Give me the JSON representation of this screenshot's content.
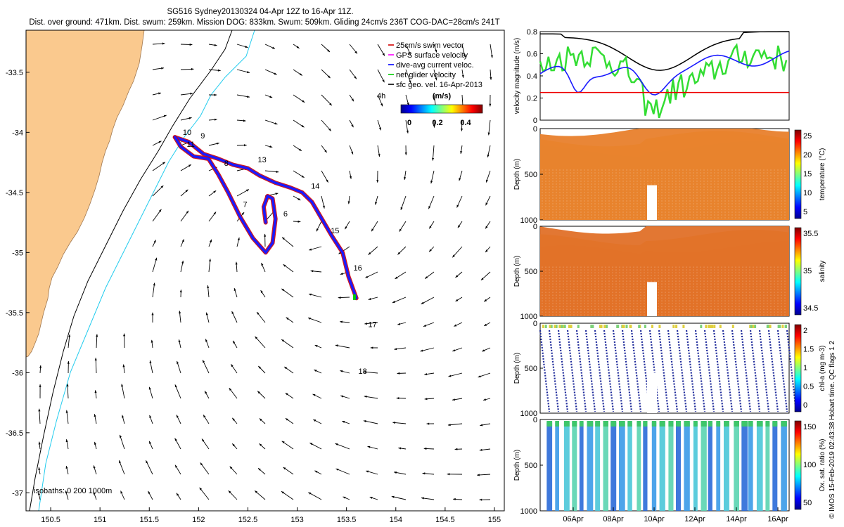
{
  "title": {
    "line1": "SG516 Sydney20130324 04-Apr 12Z to 16-Apr 11Z.",
    "line2": "Dist. over ground: 471km. Dist. swum: 259km. Mission DOG: 833km. Swum: 509km. Gliding 24cm/s 236T COG-DAC=28cm/s 241T"
  },
  "side_note": "© IMOS 15-Feb-2019 02:43:38 Hobart time. QC flags 1 2",
  "map": {
    "x_ticks": [
      150.5,
      151,
      151.5,
      152,
      152.5,
      153,
      153.5,
      154,
      154.5,
      155
    ],
    "y_ticks": [
      -33.5,
      -34,
      -34.5,
      -35,
      -35.5,
      -36,
      -36.5,
      -37
    ],
    "xlim": [
      150.25,
      155.1
    ],
    "ylim": [
      -37.15,
      -33.15
    ],
    "land_color": "#fac98e",
    "isobath_label": "isobaths: 0   200  1000m",
    "legend": [
      {
        "symbol": "-",
        "color": "#d00000",
        "label": "25cm/s swim vector"
      },
      {
        "symbol": "-",
        "color": "#ff00ff",
        "label": "GPS surface velocity"
      },
      {
        "symbol": "-",
        "color": "#0000ff",
        "label": "dive-avg current veloc."
      },
      {
        "symbol": "-",
        "color": "#00cc00",
        "label": "net glider velocity"
      },
      {
        "symbol": "-",
        "color": "#000000",
        "label": "sfc geo. vel. 16-Apr-2013"
      }
    ],
    "scale_label": "4h",
    "colorbar": {
      "title": "(m/s)",
      "ticks": [
        "0",
        "0.2",
        "0.4"
      ]
    },
    "day_labels": [
      {
        "text": "10",
        "lon": 151.84,
        "lat": -34.02
      },
      {
        "text": "11",
        "lon": 151.88,
        "lat": -34.12
      },
      {
        "text": "9",
        "lon": 152.02,
        "lat": -34.05
      },
      {
        "text": "8",
        "lon": 152.26,
        "lat": -34.28
      },
      {
        "text": "13",
        "lon": 152.6,
        "lat": -34.25
      },
      {
        "text": "14",
        "lon": 153.14,
        "lat": -34.47
      },
      {
        "text": "7",
        "lon": 152.45,
        "lat": -34.62
      },
      {
        "text": "6",
        "lon": 152.86,
        "lat": -34.7
      },
      {
        "text": "15",
        "lon": 153.34,
        "lat": -34.84
      },
      {
        "text": "16",
        "lon": 153.57,
        "lat": -35.15
      },
      {
        "text": "17",
        "lon": 153.72,
        "lat": -35.62
      },
      {
        "text": "18",
        "lon": 153.62,
        "lat": -36.01
      }
    ]
  },
  "velocity_panel": {
    "ylabel": "velocity magnitude (m/s)",
    "y_ticks": [
      "0",
      "0.2",
      "0.4",
      "0.6",
      "0.8"
    ],
    "ylim": [
      0,
      0.8
    ],
    "threshold": 0.25
  },
  "profiles": [
    {
      "id": "temperature",
      "ylabel": "Depth (m)",
      "clabel": "temperature (°C)",
      "cticks": [
        "25",
        "20",
        "15",
        "10",
        "5"
      ]
    },
    {
      "id": "salinity",
      "ylabel": "Depth (m)",
      "clabel": "salinity",
      "cticks": [
        "35.5",
        "35",
        "34.5"
      ]
    },
    {
      "id": "chla",
      "ylabel": "Depth (m)",
      "clabel": "chl-a (mg m-3)",
      "cticks": [
        "2",
        "1.5",
        "1",
        "0.5",
        "0"
      ]
    },
    {
      "id": "oxygen",
      "ylabel": "Depth (m)",
      "clabel": "Ox. sat. ratio (%)",
      "cticks": [
        "150",
        "100",
        "50"
      ]
    }
  ],
  "depth_ticks": [
    "0",
    "500",
    "1000"
  ],
  "time_ticks": [
    "06Apr",
    "08Apr",
    "10Apr",
    "12Apr",
    "14Apr",
    "16Apr"
  ],
  "chart_data": {
    "type": "scatter",
    "title": "SG516 Sydney20130324 04-Apr 12Z to 16-Apr 11Z.",
    "xlabel": "",
    "ylabel": "",
    "xlim": [
      150.25,
      155.1
    ],
    "ylim": [
      -37.15,
      -33.15
    ],
    "series": [
      {
        "name": "dive-avg current veloc.",
        "x": [
          151.76,
          151.9,
          152.05,
          152.2,
          152.35,
          152.5,
          152.62,
          152.78,
          152.93,
          153.05,
          153.15,
          153.25,
          153.35,
          153.46,
          153.52,
          153.6
        ],
        "y": [
          -34.04,
          -34.08,
          -34.18,
          -34.22,
          -34.27,
          -34.3,
          -34.36,
          -34.42,
          -34.46,
          -34.5,
          -34.58,
          -34.72,
          -34.86,
          -35.0,
          -35.2,
          -35.38
        ]
      },
      {
        "name": "dive-avg current veloc.",
        "x": [
          151.76,
          151.82,
          151.95,
          152.1,
          152.2,
          152.3,
          152.42,
          152.55,
          152.68,
          152.75,
          152.78,
          152.75,
          152.7,
          152.66,
          152.68
        ],
        "y": [
          -34.04,
          -34.12,
          -34.2,
          -34.22,
          -34.35,
          -34.5,
          -34.7,
          -34.88,
          -35.0,
          -34.92,
          -34.72,
          -34.55,
          -34.53,
          -34.62,
          -34.75
        ]
      }
    ]
  }
}
